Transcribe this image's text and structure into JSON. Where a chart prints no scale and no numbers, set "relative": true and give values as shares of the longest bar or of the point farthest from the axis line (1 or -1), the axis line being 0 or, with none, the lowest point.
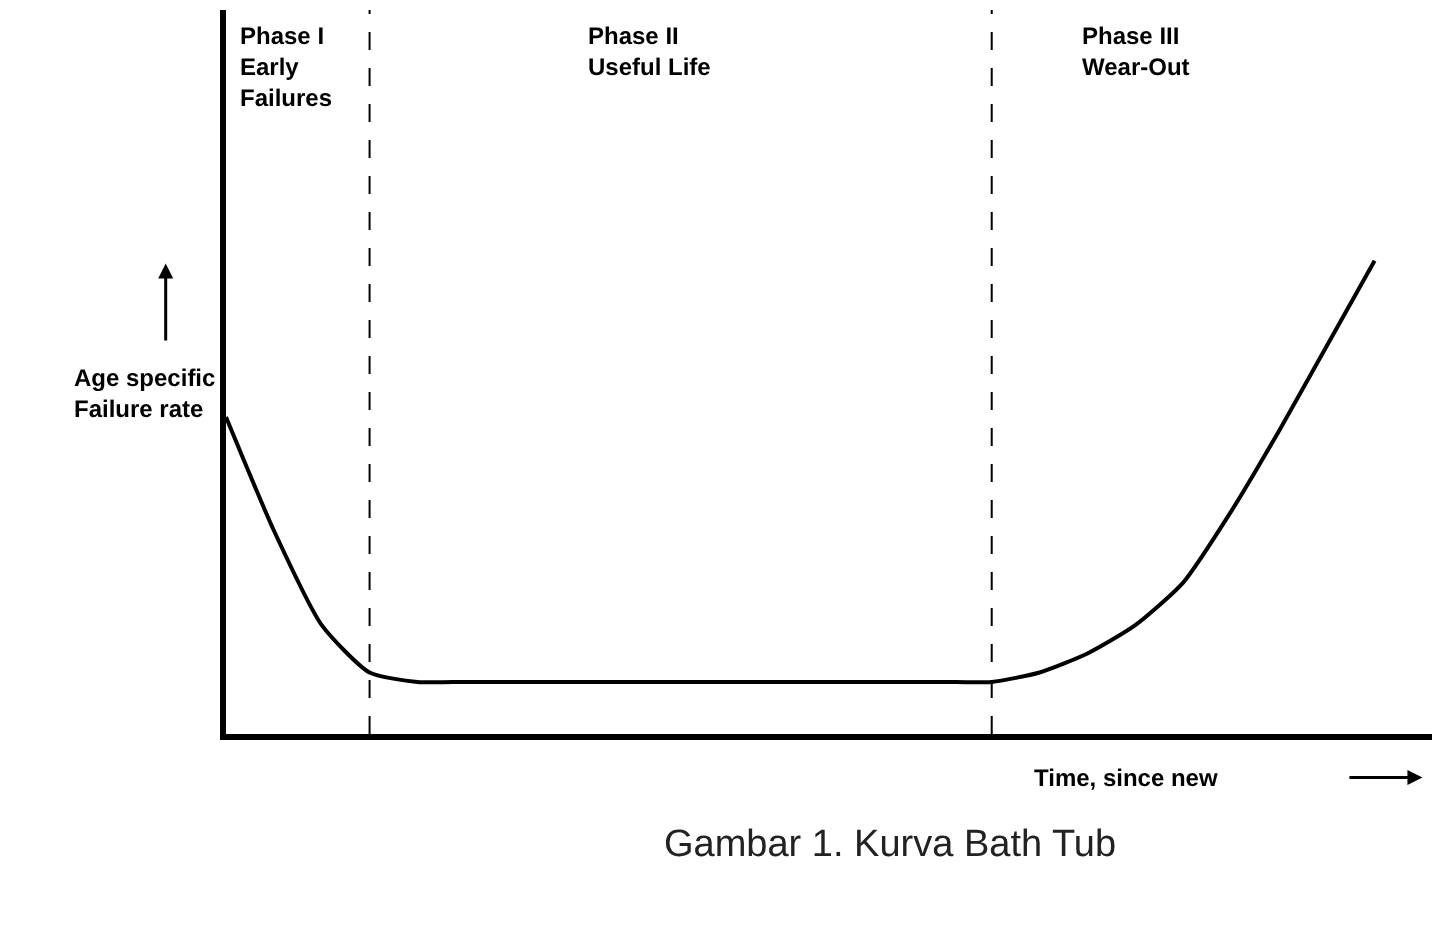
{
  "chart_data": {
    "type": "line",
    "relative": true,
    "categories": [
      null,
      null,
      null,
      null,
      null,
      null,
      null,
      null,
      null,
      null,
      null,
      null,
      null,
      null,
      null,
      null,
      null,
      null,
      null,
      null,
      null,
      null,
      null,
      null,
      null
    ],
    "series": [
      {
        "color": "#000000",
        "values": [
          0.67,
          0.43,
          0.23,
          0.13,
          0.11,
          0.11,
          0.11,
          0.11,
          0.11,
          0.11,
          0.11,
          0.11,
          0.11,
          0.11,
          0.11,
          0.11,
          0.11,
          0.13,
          0.17,
          0.23,
          0.32,
          0.47,
          0.64,
          0.82,
          1.0
        ]
      }
    ],
    "xlabel": "Time, since new",
    "ylabel": "Age specific\nFailure rate",
    "annotations": [
      "Phase I\nEarly\nFailures",
      "Phase II\nUseful Life",
      "Phase III\nWear-Out",
      "Gambar 1. Kurva Bath Tub"
    ],
    "legend": false,
    "marker": "none",
    "line_style": "solid"
  }
}
